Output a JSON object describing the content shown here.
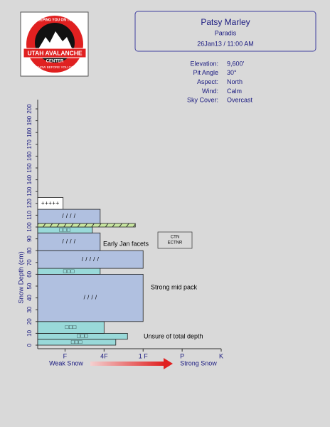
{
  "logo": {
    "top_text": "KEEPING YOU ON TOP",
    "name": "UTAH AVALANCHE",
    "sub": "CENTER",
    "motto": "KNOW BEFORE YOU GO"
  },
  "header": {
    "observer": "Patsy Marley",
    "location": "Paradis",
    "datetime": "26Jan13 / 11:00 AM"
  },
  "site": [
    {
      "label": "Elevation:",
      "value": "9,600'"
    },
    {
      "label": "Pit Angle",
      "value": "30°"
    },
    {
      "label": "Aspect:",
      "value": "North"
    },
    {
      "label": "Wind:",
      "value": "Calm"
    },
    {
      "label": "Sky Cover:",
      "value": "Overcast"
    }
  ],
  "chart_data": {
    "type": "snow-profile",
    "ylabel": "Snow Depth (cm)",
    "ylim": [
      0,
      200
    ],
    "yticks": [
      0,
      10,
      20,
      30,
      40,
      50,
      60,
      70,
      80,
      90,
      100,
      110,
      120,
      130,
      140,
      150,
      160,
      170,
      180,
      190,
      200
    ],
    "xlim": [
      0.3,
      5.2
    ],
    "xticks": [
      {
        "value": 1,
        "label": "F"
      },
      {
        "value": 2,
        "label": "4F"
      },
      {
        "value": 3,
        "label": "1 F"
      },
      {
        "value": 4,
        "label": "P"
      },
      {
        "value": 5,
        "label": "K"
      }
    ],
    "xlabel_weak": "Weak Snow",
    "xlabel_strong": "Strong Snow",
    "layers": [
      {
        "bottom": 0,
        "top": 5,
        "hardness": 2.3,
        "color": "#99d9d9",
        "symbol": "□□□"
      },
      {
        "bottom": 5,
        "top": 10,
        "hardness": 2.6,
        "color": "#99d9d9",
        "symbol": "□□□"
      },
      {
        "bottom": 10,
        "top": 20,
        "hardness": 2.0,
        "color": "#99d9d9",
        "symbol": "□□□"
      },
      {
        "bottom": 20,
        "top": 60,
        "hardness": 3.0,
        "color": "#b0c0e0",
        "symbol": "/ / / /"
      },
      {
        "bottom": 60,
        "top": 65,
        "hardness": 1.9,
        "color": "#99d9d9",
        "symbol": "□□□"
      },
      {
        "bottom": 65,
        "top": 80,
        "hardness": 3.0,
        "color": "#b0c0e0",
        "symbol": "/ / / / /"
      },
      {
        "bottom": 80,
        "top": 95,
        "hardness": 1.9,
        "color": "#b0c0e0",
        "symbol": "/ / / /"
      },
      {
        "bottom": 95,
        "top": 100,
        "hardness": 1.7,
        "color": "#99d9d9",
        "symbol": "□□□"
      },
      {
        "bottom": 100,
        "top": 103,
        "hardness": 2.8,
        "color": "#c8e6a0",
        "hatched": true
      },
      {
        "bottom": 103,
        "top": 115,
        "hardness": 1.9,
        "color": "#b0c0e0",
        "symbol": "/ / / /"
      },
      {
        "bottom": 115,
        "top": 125,
        "hardness": 0.95,
        "color": "#ffffff",
        "symbol": "+++++"
      }
    ],
    "annotations": [
      "Early Jan facets",
      "Strong mid pack",
      "Unsure of total depth"
    ],
    "test": [
      "CTN",
      "ECTNR"
    ]
  }
}
